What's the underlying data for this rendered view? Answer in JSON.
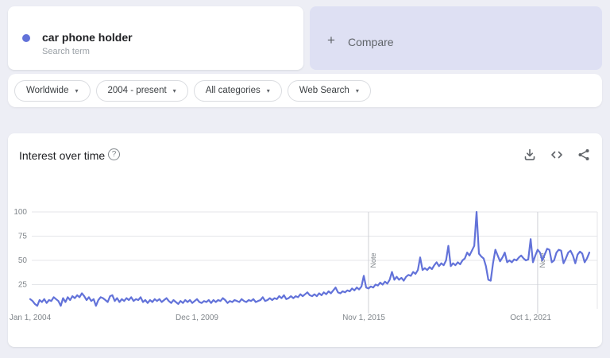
{
  "term_card": {
    "term": "car phone holder",
    "subtitle": "Search term",
    "dot_color": "#6272d9"
  },
  "compare_card": {
    "label": "Compare"
  },
  "icons": {
    "plus": "+",
    "caret": "▾",
    "help": "?"
  },
  "filters": [
    {
      "label": "Worldwide"
    },
    {
      "label": "2004 - present"
    },
    {
      "label": "All categories"
    },
    {
      "label": "Web Search"
    }
  ],
  "chart_header": {
    "title": "Interest over time"
  },
  "chart_data": {
    "type": "line",
    "title": "Interest over time",
    "series_name": "car phone holder",
    "series_color": "#6272d9",
    "xlabel": "",
    "ylabel": "",
    "ylim": [
      0,
      100
    ],
    "yticks": [
      100,
      75,
      50,
      25
    ],
    "grid": "horizontal",
    "x_unit": "month",
    "x_start": "Jan 2004",
    "x_end": "Nov 2023",
    "x_ticks": [
      {
        "index": 0,
        "label": "Jan 1, 2004"
      },
      {
        "index": 71,
        "label": "Dec 1, 2009"
      },
      {
        "index": 142,
        "label": "Nov 1, 2015"
      },
      {
        "index": 213,
        "label": "Oct 1, 2021"
      }
    ],
    "notes": [
      {
        "index": 144,
        "label": "Note"
      },
      {
        "index": 216,
        "label": "Note"
      }
    ],
    "values": [
      10,
      8,
      5,
      3,
      9,
      7,
      10,
      6,
      9,
      8,
      12,
      10,
      8,
      3,
      11,
      7,
      12,
      9,
      13,
      11,
      14,
      12,
      16,
      13,
      9,
      12,
      8,
      10,
      3,
      9,
      12,
      11,
      9,
      7,
      13,
      14,
      8,
      11,
      7,
      10,
      8,
      11,
      9,
      12,
      8,
      10,
      9,
      12,
      7,
      9,
      6,
      9,
      7,
      10,
      8,
      10,
      7,
      9,
      11,
      8,
      6,
      9,
      7,
      5,
      8,
      6,
      9,
      7,
      9,
      6,
      8,
      10,
      7,
      6,
      8,
      7,
      9,
      6,
      9,
      7,
      9,
      8,
      11,
      9,
      6,
      8,
      7,
      9,
      8,
      7,
      10,
      8,
      7,
      9,
      8,
      10,
      7,
      8,
      9,
      12,
      8,
      9,
      11,
      9,
      11,
      10,
      13,
      11,
      14,
      10,
      11,
      13,
      11,
      13,
      12,
      15,
      13,
      15,
      17,
      14,
      13,
      15,
      13,
      16,
      14,
      17,
      15,
      18,
      16,
      19,
      22,
      17,
      16,
      18,
      17,
      19,
      18,
      21,
      19,
      22,
      20,
      23,
      34,
      22,
      21,
      23,
      22,
      25,
      24,
      27,
      25,
      28,
      26,
      30,
      38,
      30,
      33,
      30,
      32,
      29,
      33,
      35,
      34,
      38,
      36,
      40,
      53,
      40,
      42,
      40,
      43,
      41,
      45,
      48,
      44,
      47,
      45,
      50,
      65,
      44,
      47,
      45,
      48,
      46,
      50,
      52,
      58,
      55,
      60,
      65,
      100,
      57,
      54,
      52,
      44,
      30,
      29,
      47,
      61,
      55,
      49,
      53,
      58,
      48,
      50,
      48,
      51,
      50,
      53,
      55,
      52,
      50,
      51,
      72,
      48,
      55,
      61,
      58,
      50,
      56,
      62,
      61,
      48,
      50,
      58,
      61,
      60,
      47,
      52,
      58,
      60,
      55,
      47,
      56,
      59,
      57,
      48,
      52,
      58
    ]
  }
}
